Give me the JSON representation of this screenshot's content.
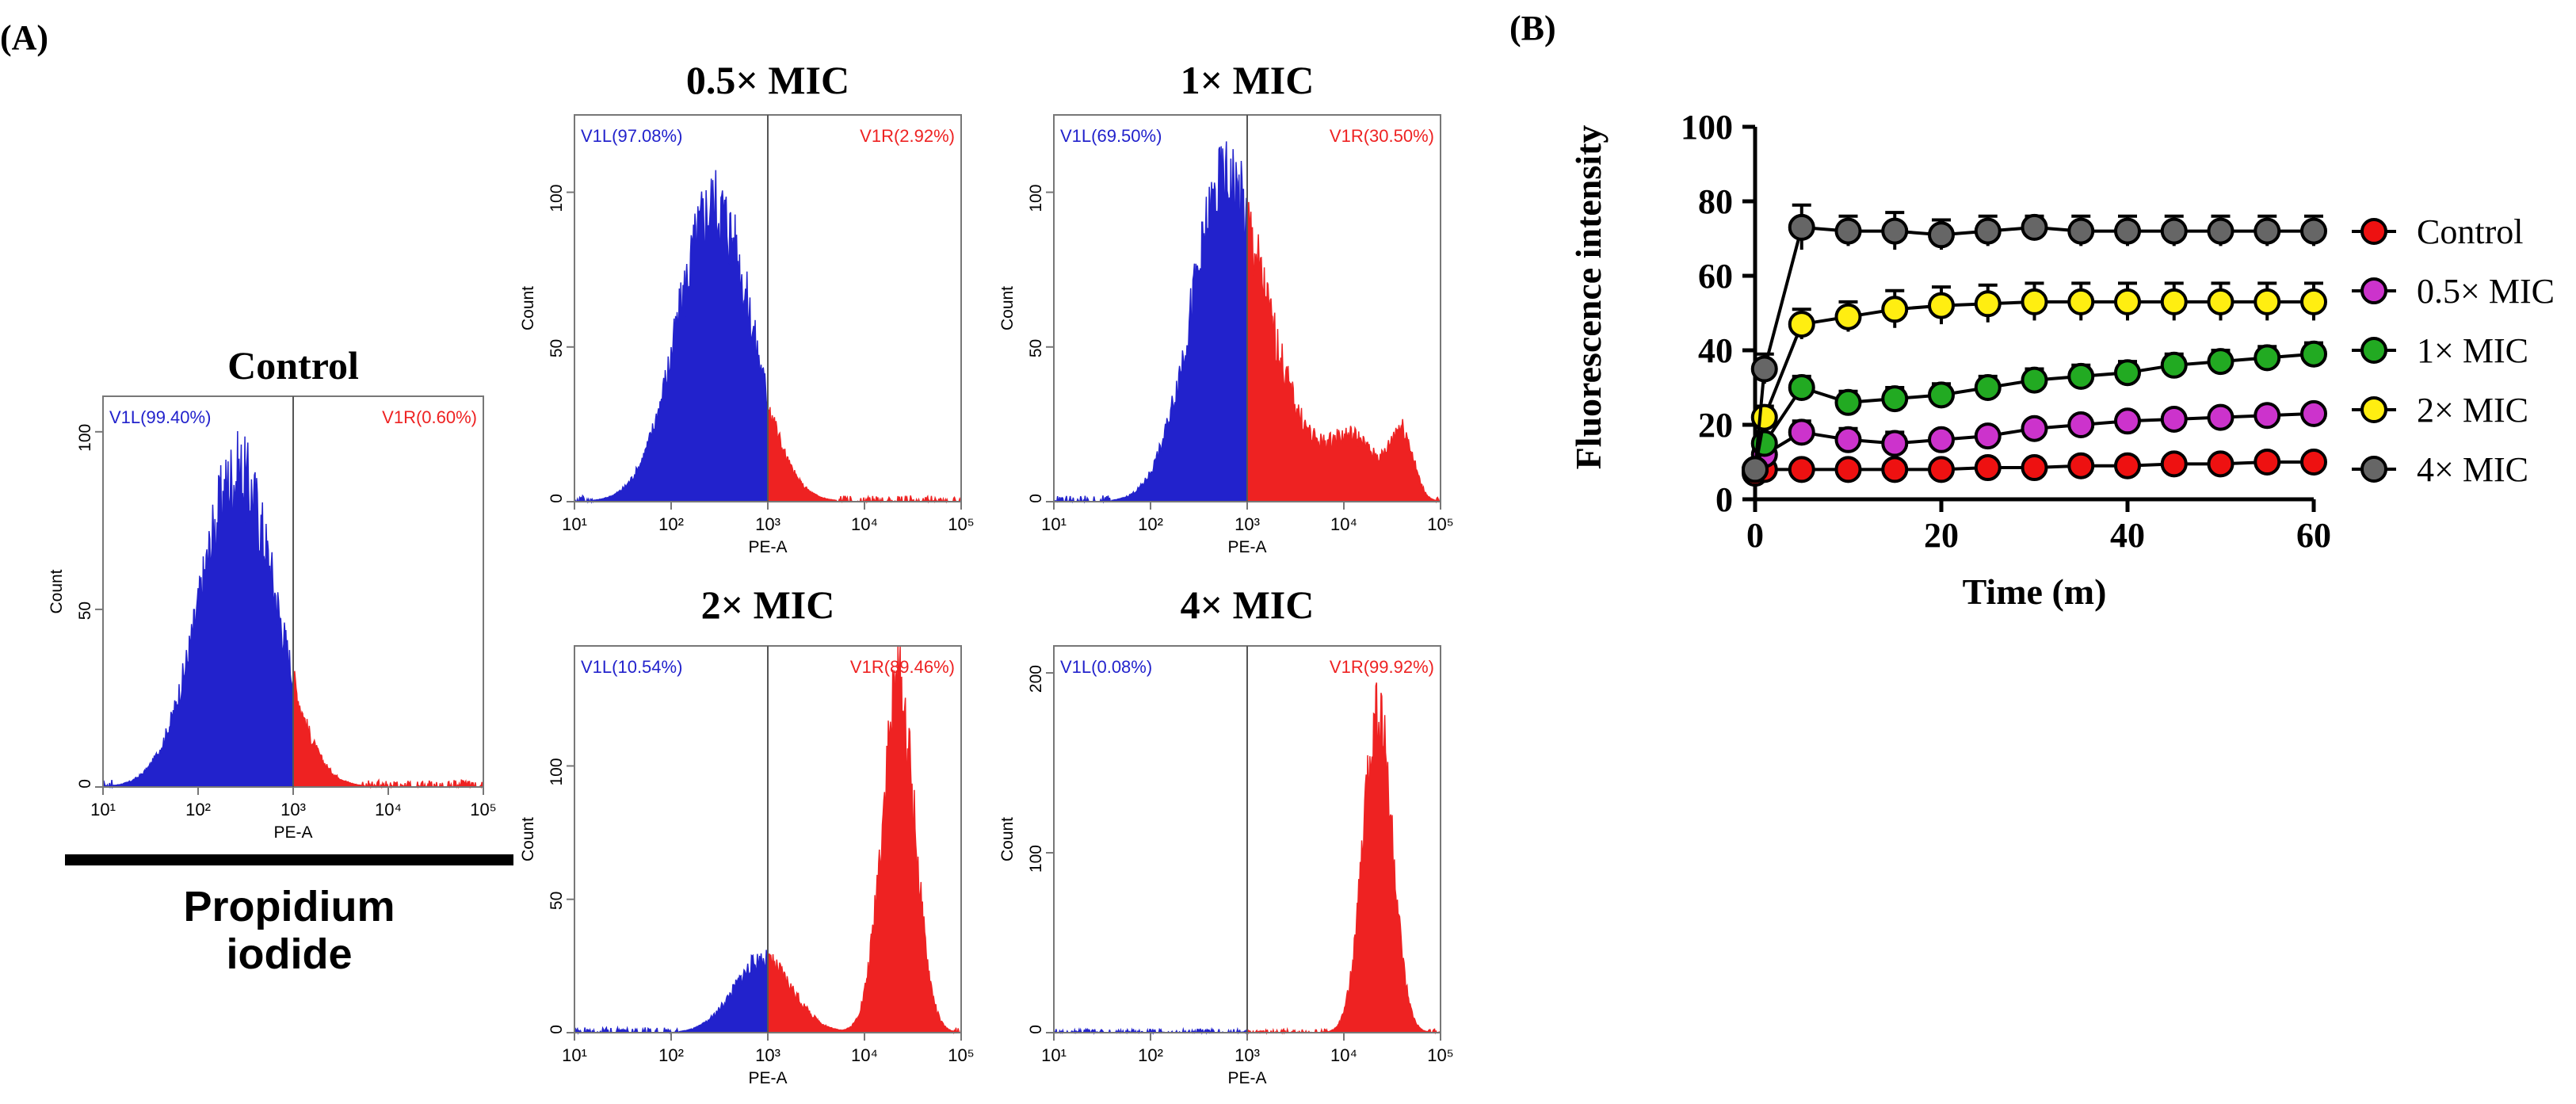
{
  "panel_labels": {
    "a": "(A)",
    "b": "(B)"
  },
  "side_label": {
    "line1": "Propidium",
    "line2": "iodide"
  },
  "colors": {
    "blue": "#2222cc",
    "red": "#ee2222",
    "axis": "#000000"
  },
  "chart_data": [
    {
      "type": "histogram",
      "id": "control",
      "title": "Control",
      "xlabel": "PE-A",
      "ylabel": "Count",
      "x_ticks": [
        "10¹",
        "10²",
        "10³",
        "10⁴",
        "10⁵"
      ],
      "y_ticks": [
        0,
        50,
        100
      ],
      "ylim": [
        0,
        110
      ],
      "gate_left": "V1L(99.40%)",
      "gate_right": "V1R(0.60%)",
      "gate_at": 1000,
      "peaks": [
        {
          "center": 2.42,
          "height": 90,
          "width": 0.4
        }
      ]
    },
    {
      "type": "histogram",
      "id": "half",
      "title": "0.5× MIC",
      "xlabel": "PE-A",
      "ylabel": "Count",
      "x_ticks": [
        "10¹",
        "10²",
        "10³",
        "10⁴",
        "10⁵"
      ],
      "y_ticks": [
        0,
        50,
        100
      ],
      "ylim": [
        0,
        125
      ],
      "gate_left": "V1L(97.08%)",
      "gate_right": "V1R(2.92%)",
      "gate_at": 1000,
      "peaks": [
        {
          "center": 2.45,
          "height": 98,
          "width": 0.38
        }
      ]
    },
    {
      "type": "histogram",
      "id": "one",
      "title": "1× MIC",
      "xlabel": "PE-A",
      "ylabel": "Count",
      "x_ticks": [
        "10¹",
        "10²",
        "10³",
        "10⁴",
        "10⁵"
      ],
      "y_ticks": [
        0,
        50,
        100
      ],
      "ylim": [
        0,
        125
      ],
      "gate_left": "V1L(69.50%)",
      "gate_right": "V1R(30.50%)",
      "gate_at": 1000,
      "peaks": [
        {
          "center": 2.75,
          "height": 97,
          "width": 0.35
        },
        {
          "center": 3.3,
          "height": 25,
          "width": 0.35
        },
        {
          "center": 4.1,
          "height": 20,
          "width": 0.25
        },
        {
          "center": 4.6,
          "height": 22,
          "width": 0.12
        }
      ]
    },
    {
      "type": "histogram",
      "id": "two",
      "title": "2× MIC",
      "xlabel": "PE-A",
      "ylabel": "Count",
      "x_ticks": [
        "10¹",
        "10²",
        "10³",
        "10⁴",
        "10⁵"
      ],
      "y_ticks": [
        0,
        50,
        100
      ],
      "ylim": [
        0,
        145
      ],
      "gate_left": "V1L(10.54%)",
      "gate_right": "V1R(89.46%)",
      "gate_at": 1000,
      "peaks": [
        {
          "center": 2.95,
          "height": 28,
          "width": 0.3
        },
        {
          "center": 4.35,
          "height": 132,
          "width": 0.17
        }
      ]
    },
    {
      "type": "histogram",
      "id": "four",
      "title": "4× MIC",
      "xlabel": "PE-A",
      "ylabel": "Count",
      "x_ticks": [
        "10¹",
        "10²",
        "10³",
        "10⁴",
        "10⁵"
      ],
      "y_ticks": [
        0,
        100,
        200
      ],
      "ylim": [
        0,
        215
      ],
      "gate_left": "V1L(0.08%)",
      "gate_right": "V1R(99.92%)",
      "gate_at": 1000,
      "peaks": [
        {
          "center": 4.35,
          "height": 183,
          "width": 0.15
        }
      ]
    },
    {
      "type": "line",
      "id": "fluorescence",
      "xlabel": "Time (m)",
      "ylabel": "Fluorescence intensity",
      "xlim": [
        0,
        60
      ],
      "ylim": [
        0,
        100
      ],
      "x_ticks": [
        0,
        20,
        40,
        60
      ],
      "y_ticks": [
        0,
        20,
        40,
        60,
        80,
        100
      ],
      "x": [
        0,
        1,
        5,
        10,
        15,
        20,
        25,
        30,
        35,
        40,
        45,
        50,
        55,
        60
      ],
      "series": [
        {
          "name": "Control",
          "color": "#ee1111",
          "values": [
            7,
            8,
            8,
            8,
            8,
            8,
            8.5,
            8.5,
            9,
            9,
            9.5,
            9.5,
            10,
            10
          ],
          "err": [
            0.5,
            0.5,
            0.5,
            0.5,
            0.5,
            0.5,
            0.5,
            0.5,
            0.5,
            0.5,
            0.5,
            0.5,
            0.5,
            0.5
          ]
        },
        {
          "name": "0.5× MIC",
          "color": "#cc33cc",
          "values": [
            8,
            12,
            18,
            16,
            15,
            16,
            17,
            19,
            20,
            21,
            21.5,
            22,
            22.5,
            23
          ],
          "err": [
            1,
            2,
            3,
            3,
            3,
            2,
            2,
            2,
            2,
            2,
            2,
            2,
            2,
            2
          ]
        },
        {
          "name": "1× MIC",
          "color": "#22aa22",
          "values": [
            8,
            15,
            30,
            26,
            27,
            28,
            30,
            32,
            33,
            34,
            36,
            37,
            38,
            39
          ],
          "err": [
            1,
            2,
            3,
            3,
            3,
            3,
            3,
            3,
            3,
            3,
            3,
            3,
            3,
            3
          ]
        },
        {
          "name": "2× MIC",
          "color": "#ffee11",
          "values": [
            8,
            22,
            47,
            49,
            51,
            52,
            52.5,
            53,
            53,
            53,
            53,
            53,
            53,
            53
          ],
          "err": [
            1,
            3,
            4,
            4,
            5,
            5,
            5,
            5,
            5,
            5,
            5,
            5,
            5,
            5
          ]
        },
        {
          "name": "4× MIC",
          "color": "#666666",
          "values": [
            8,
            35,
            73,
            72,
            72,
            71,
            72,
            73,
            72,
            72,
            72,
            72,
            72,
            72
          ],
          "err": [
            1,
            4,
            6,
            4,
            5,
            4,
            4,
            3,
            4,
            4,
            4,
            4,
            4,
            4
          ]
        }
      ]
    }
  ]
}
